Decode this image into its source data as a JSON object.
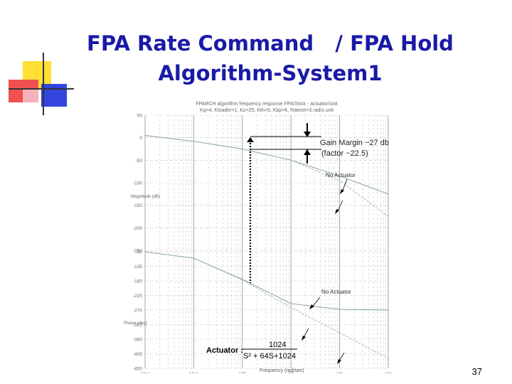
{
  "slide": {
    "title_line1": "FPA Rate Command   / FPA Hold",
    "title_line2": "Algorithm-System1",
    "slide_number": "37"
  },
  "figure": {
    "header_line1": "FPARCH algorithm frequency response FPA/Stick - actuator/unit",
    "header_line2": "Kq=4, Kloader=1, Kz=25, Kth=5, Kbp=6, Ratesh=3 rad/s unit",
    "ylabel_magnitude": "Magnitude (dB)",
    "ylabel_phase": "Phase (deg)",
    "xlabel": "Frequency (rad/sec)",
    "gain_margin_label": "Gain Margin ~27 db",
    "gain_margin_factor": "(factor ~22.5)",
    "annotation_no_actuator_mag": "No Actuator",
    "annotation_no_actuator_phase": "No Actuator",
    "actuator_label": "Actuator :",
    "actuator_tf_numerator": "1024",
    "actuator_tf_denominator": "S² + 64S+1024",
    "magnitude_ticks": [
      "50",
      "0",
      "-50",
      "-100",
      "-150",
      "-200",
      "-250"
    ],
    "phase_ticks": [
      "-90",
      "-135",
      "-180",
      "-225",
      "-270",
      "-315",
      "-360",
      "-405",
      "-450"
    ],
    "x_ticks": [
      "10⁻²",
      "10⁻¹",
      "10⁰",
      "10¹",
      "10²",
      "10³"
    ]
  },
  "chart_data": {
    "type": "line",
    "title": "FPARCH algorithm frequency response FPA/Stick - actuator/unit",
    "xlabel": "Frequency (rad/sec)",
    "x_scale": "log",
    "xlim": [
      0.01,
      1000
    ],
    "panels": [
      {
        "name": "magnitude",
        "ylabel": "Magnitude (dB)",
        "ylim": [
          -250,
          50
        ],
        "series": [
          {
            "x": [
              0.01,
              0.1,
              1,
              10,
              100,
              1000
            ],
            "y": [
              5,
              -8,
              -25,
              -50,
              -85,
              -125
            ]
          },
          {
            "x": [
              0.01,
              0.1,
              1,
              10,
              100,
              1000
            ],
            "y": [
              5,
              -8,
              -25,
              -50,
              -95,
              -175
            ]
          }
        ]
      },
      {
        "name": "phase",
        "ylabel": "Phase (deg)",
        "ylim": [
          -450,
          -90
        ],
        "series": [
          {
            "x": [
              0.01,
              0.1,
              1,
              10,
              100,
              1000
            ],
            "y": [
              -90,
              -110,
              -175,
              -250,
              -268,
              -270
            ]
          },
          {
            "x": [
              0.01,
              0.1,
              1,
              10,
              100,
              1000
            ],
            "y": [
              -90,
              -110,
              -177,
              -262,
              -340,
              -420
            ]
          }
        ]
      }
    ]
  },
  "colors": {
    "title": "#1a1aa8",
    "deco_yellow": "#ffe033",
    "deco_red": "#f05050",
    "deco_blue": "#3344dd"
  }
}
